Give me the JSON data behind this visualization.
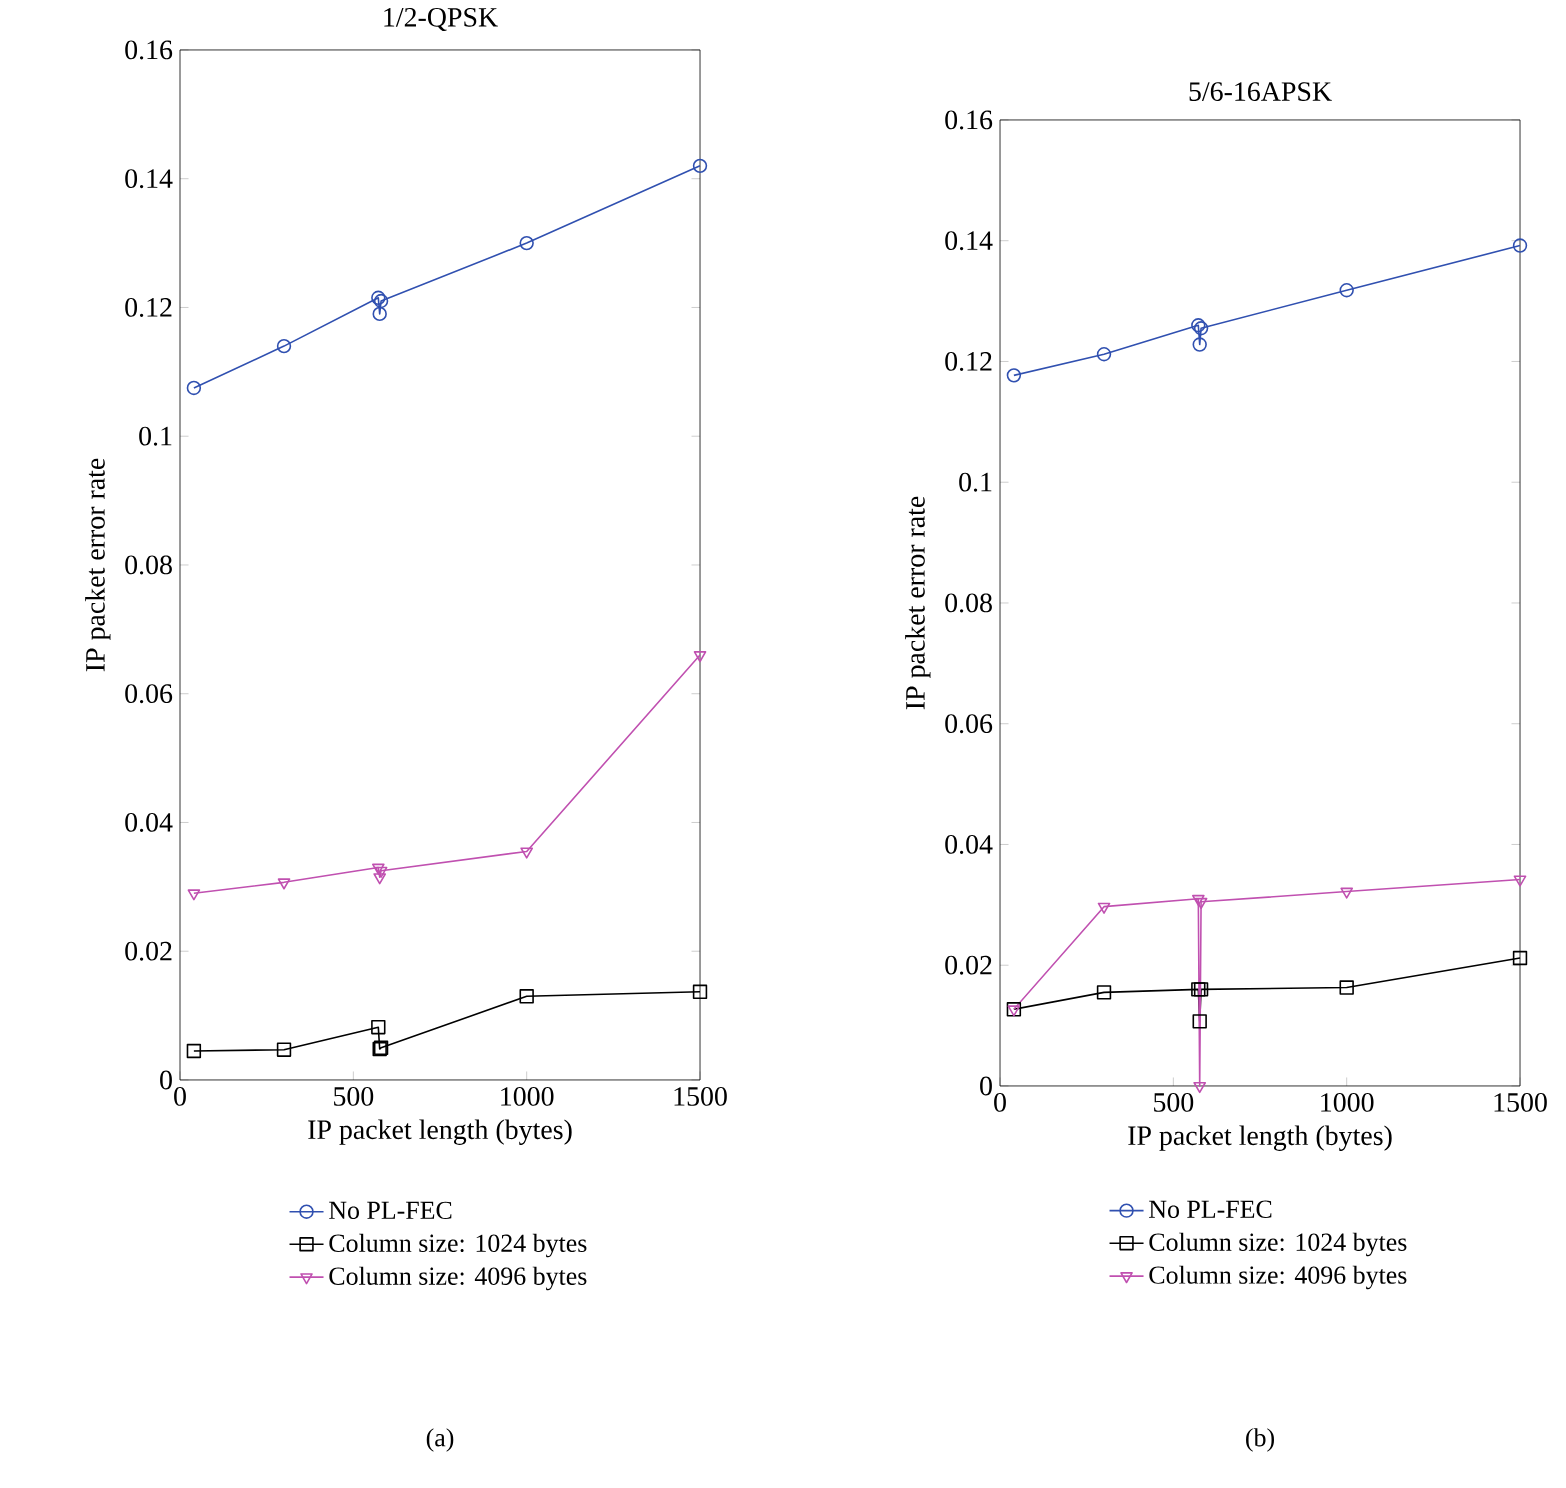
{
  "chart_data": [
    {
      "type": "line",
      "title": "1/2-QPSK",
      "xlabel": "IP packet length (bytes)",
      "ylabel": "IP packet error rate",
      "x": [
        40,
        300,
        572,
        576,
        580,
        1000,
        1500
      ],
      "xlim": [
        0,
        1500
      ],
      "xticks": [
        0,
        500,
        1000,
        1500
      ],
      "ylim": [
        0,
        0.16
      ],
      "yticks": [
        0,
        0.02,
        0.04,
        0.06,
        0.08,
        0.1,
        0.12,
        0.14,
        0.16
      ],
      "legend": "bottom",
      "line_style": "solid",
      "annotations": [
        "(a)"
      ],
      "series": [
        {
          "name": "No PL-FEC",
          "color": "#3050b0",
          "marker": "circle",
          "values": [
            0.1075,
            0.114,
            0.1215,
            0.119,
            0.121,
            0.13,
            0.142
          ]
        },
        {
          "name": "Column size: 1024 bytes",
          "color": "#000000",
          "marker": "square",
          "values": [
            0.0045,
            0.0047,
            0.0082,
            0.0048,
            0.005,
            0.013,
            0.0137
          ]
        },
        {
          "name": "Column size: 4096 bytes",
          "color": "#c050b0",
          "marker": "triangle",
          "values": [
            0.029,
            0.0307,
            0.033,
            0.0315,
            0.0325,
            0.0355,
            0.066
          ]
        }
      ]
    },
    {
      "type": "line",
      "title": "5/6-16APSK",
      "xlabel": "IP packet length (bytes)",
      "ylabel": "IP packet error rate",
      "x": [
        40,
        300,
        572,
        576,
        580,
        1000,
        1500
      ],
      "xlim": [
        0,
        1500
      ],
      "xticks": [
        0,
        500,
        1000,
        1500
      ],
      "ylim": [
        0,
        0.16
      ],
      "yticks": [
        0,
        0.02,
        0.04,
        0.06,
        0.08,
        0.1,
        0.12,
        0.14,
        0.16
      ],
      "legend": "bottom",
      "line_style": "solid",
      "annotations": [
        "(b)"
      ],
      "series": [
        {
          "name": "No PL-FEC",
          "color": "#3050b0",
          "marker": "circle",
          "values": [
            0.1177,
            0.1212,
            0.126,
            0.1228,
            0.1255,
            0.1318,
            0.1392
          ]
        },
        {
          "name": "Column size: 1024 bytes",
          "color": "#000000",
          "marker": "square",
          "values": [
            0.0127,
            0.0155,
            0.016,
            0.0107,
            0.016,
            0.0163,
            0.0212
          ]
        },
        {
          "name": "Column size: 4096 bytes",
          "color": "#c050b0",
          "marker": "triangle",
          "values": [
            0.0127,
            0.0297,
            0.031,
            0,
            0.0305,
            0.0322,
            0.0342
          ]
        }
      ]
    }
  ]
}
